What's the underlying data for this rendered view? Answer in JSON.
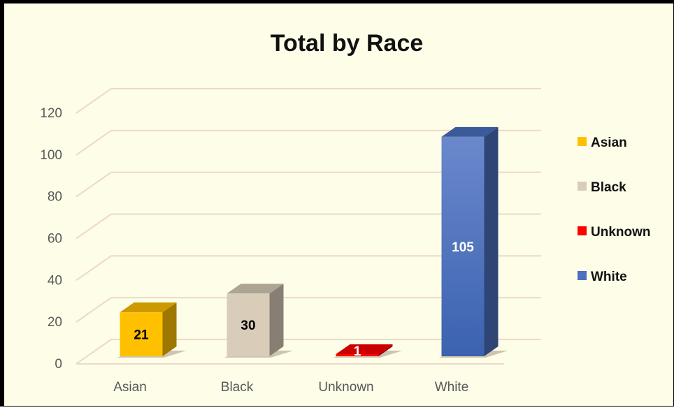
{
  "chart_data": {
    "type": "bar",
    "title": "Total by Race",
    "xlabel": "",
    "ylabel": "",
    "categories": [
      "Asian",
      "Black",
      "Unknown",
      "White"
    ],
    "values": [
      21,
      30,
      1,
      105
    ],
    "ylim": [
      0,
      120
    ],
    "yticks": [
      "0",
      "20",
      "40",
      "60",
      "80",
      "100",
      "120"
    ],
    "grid": true,
    "legend": {
      "position": "right",
      "entries": [
        "Asian",
        "Black",
        "Unknown",
        "White"
      ]
    },
    "colors": {
      "Asian": "#ffc000",
      "Black": "#d9cdb9",
      "Unknown": "#ff0000",
      "White": "#4a70bf"
    },
    "data_label_colors": {
      "Asian": "#000000",
      "Black": "#000000",
      "Unknown": "#ffffff",
      "White": "#ffffff"
    }
  }
}
